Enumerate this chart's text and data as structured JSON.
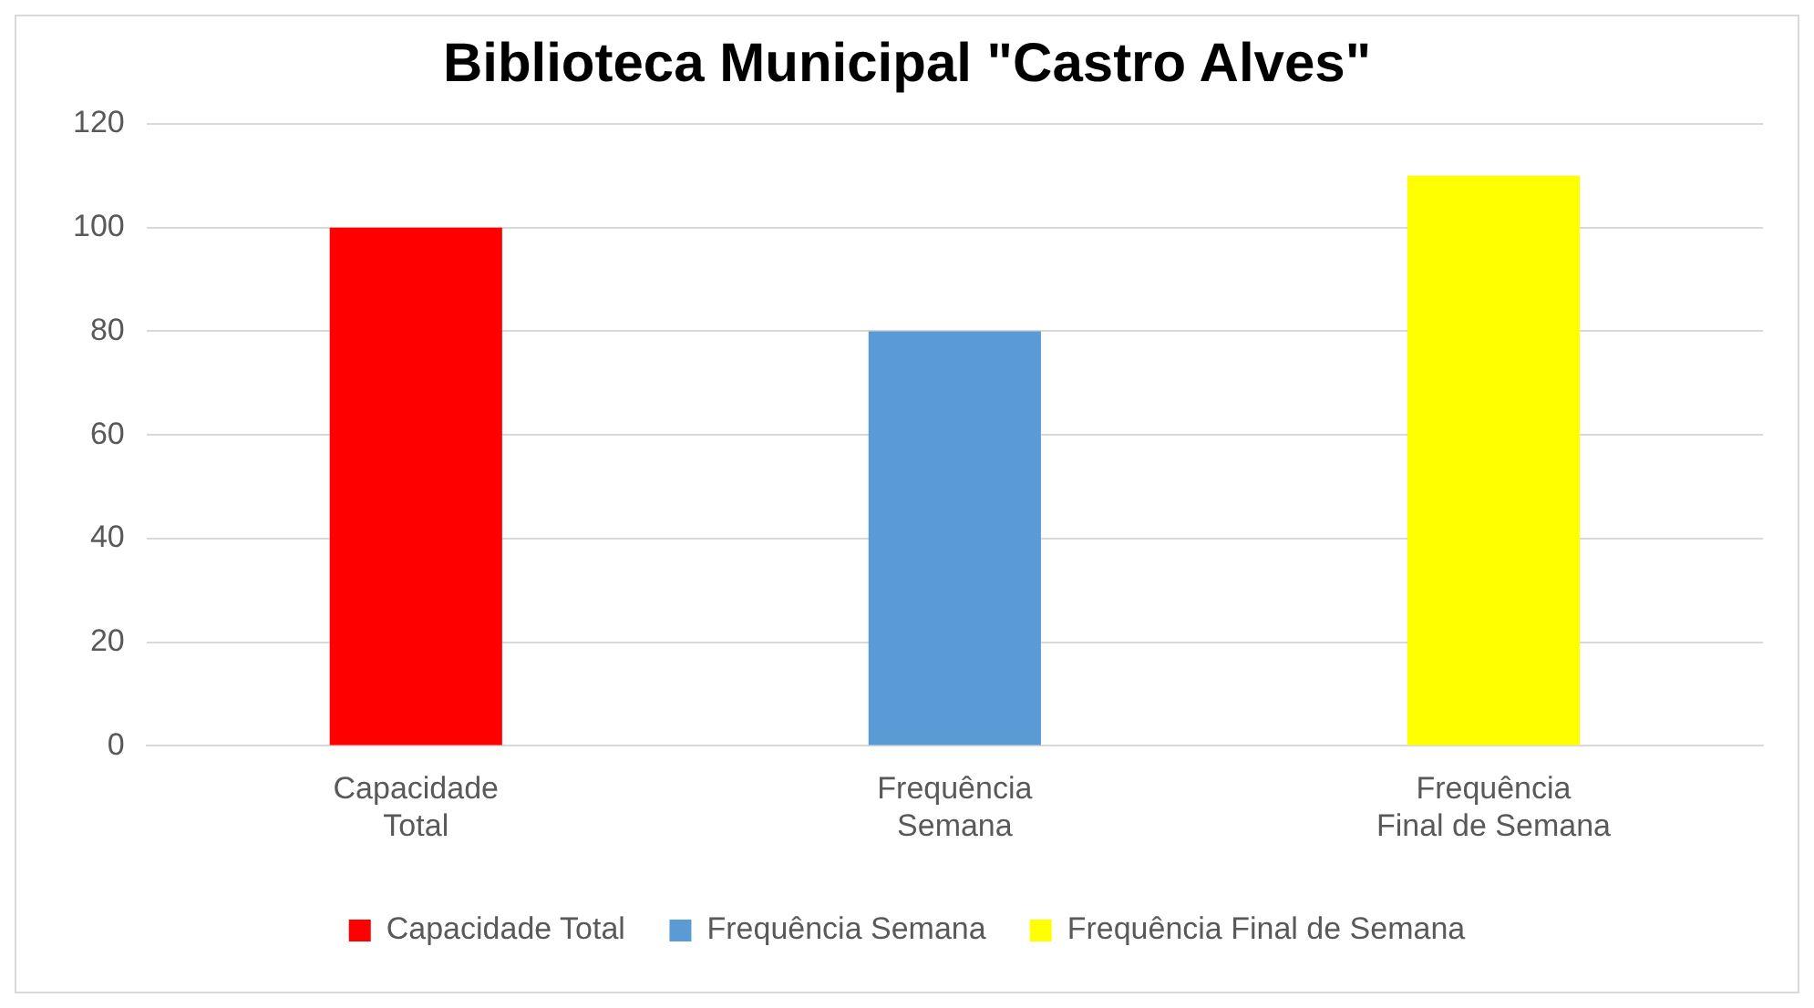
{
  "chart_data": {
    "type": "bar",
    "title": "Biblioteca Municipal \"Castro Alves\"",
    "categories": [
      "Capacidade Total",
      "Frequência Semana",
      "Frequência Final de Semana"
    ],
    "series": [
      {
        "name": "Capacidade Total",
        "color": "#ff0000",
        "values": [
          100,
          null,
          null
        ]
      },
      {
        "name": "Frequência Semana",
        "color": "#5b9bd5",
        "values": [
          null,
          80,
          null
        ]
      },
      {
        "name": "Frequência Final de Semana",
        "color": "#ffff00",
        "values": [
          null,
          null,
          110
        ]
      }
    ],
    "ylim": [
      0,
      120
    ],
    "yticks": [
      0,
      20,
      40,
      60,
      80,
      100,
      120
    ],
    "grid": "y",
    "legend": "bottom"
  }
}
